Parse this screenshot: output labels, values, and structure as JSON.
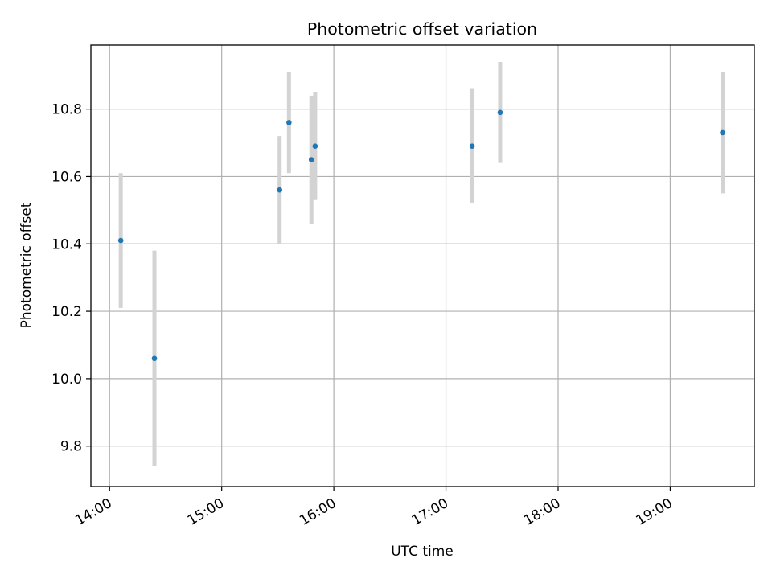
{
  "chart_data": {
    "type": "scatter",
    "title": "Photometric offset variation",
    "xlabel": "UTC time",
    "ylabel": "Photometric offset",
    "x_ticks": [
      "14:00",
      "15:00",
      "16:00",
      "17:00",
      "18:00",
      "19:00"
    ],
    "y_ticks": [
      "9.8",
      "10.0",
      "10.2",
      "10.4",
      "10.6",
      "10.8"
    ],
    "xlim": [
      "13:50",
      "19:45"
    ],
    "ylim": [
      9.68,
      10.99
    ],
    "grid": true,
    "colors": {
      "point": "#1f77b4",
      "errorbar": "#d3d3d3",
      "grid": "#b0b0b0"
    },
    "points": [
      {
        "x": "14:06",
        "y": 10.41,
        "err": 0.2
      },
      {
        "x": "14:24",
        "y": 10.06,
        "err": 0.32
      },
      {
        "x": "15:31",
        "y": 10.56,
        "err": 0.16
      },
      {
        "x": "15:36",
        "y": 10.76,
        "err": 0.15
      },
      {
        "x": "15:48",
        "y": 10.65,
        "err": 0.19
      },
      {
        "x": "15:50",
        "y": 10.69,
        "err": 0.16
      },
      {
        "x": "17:14",
        "y": 10.69,
        "err": 0.17
      },
      {
        "x": "17:29",
        "y": 10.79,
        "err": 0.15
      },
      {
        "x": "19:28",
        "y": 10.73,
        "err": 0.18
      }
    ]
  }
}
